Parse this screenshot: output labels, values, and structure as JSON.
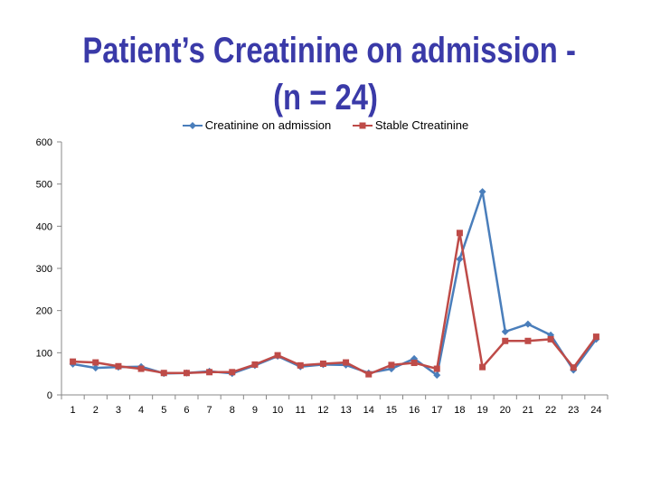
{
  "title_line1": "Patient’s Creatinine on admission -",
  "title_line2": "(n = 24)",
  "chart_data": {
    "type": "line",
    "title": "Patient’s Creatinine on admission - (n = 24)",
    "xlabel": "",
    "ylabel": "",
    "ylim": [
      0,
      600
    ],
    "yticks": [
      "0",
      "100",
      "200",
      "300",
      "400",
      "500",
      "600"
    ],
    "categories": [
      "1",
      "2",
      "3",
      "4",
      "5",
      "6",
      "7",
      "8",
      "9",
      "10",
      "11",
      "12",
      "13",
      "14",
      "15",
      "16",
      "17",
      "18",
      "19",
      "20",
      "21",
      "22",
      "23",
      "24"
    ],
    "legend_position": "top",
    "grid": false,
    "series": [
      {
        "name": "Creatinine on admission",
        "color": "#4a7ebb",
        "marker": "diamond",
        "values": [
          73,
          64,
          66,
          67,
          51,
          52,
          56,
          51,
          70,
          92,
          67,
          72,
          71,
          52,
          62,
          86,
          47,
          322,
          482,
          150,
          168,
          142,
          59,
          132
        ]
      },
      {
        "name": "Stable Ctreatinine",
        "color": "#be4b48",
        "marker": "square",
        "values": [
          79,
          77,
          68,
          62,
          52,
          52,
          54,
          54,
          72,
          94,
          70,
          74,
          77,
          49,
          71,
          76,
          62,
          384,
          66,
          128,
          128,
          132,
          65,
          138
        ]
      }
    ]
  }
}
